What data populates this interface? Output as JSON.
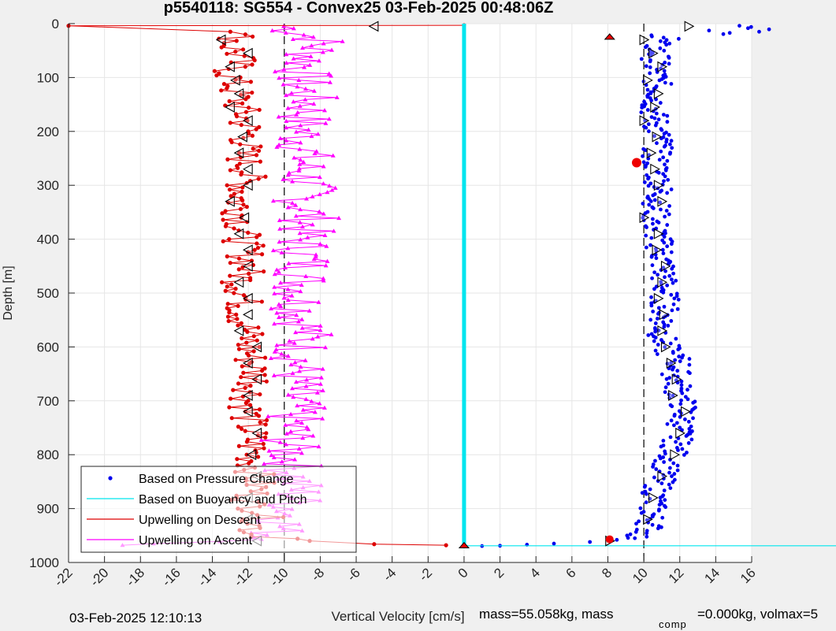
{
  "chart_data": {
    "type": "scatter",
    "title": "p5540118: SG554 - Convex25 03-Feb-2025 00:48:06Z",
    "xlabel": "Vertical Velocity [cm/s]",
    "ylabel": "Depth [m]",
    "xlim": [
      -22,
      16
    ],
    "ylim": [
      0,
      1000
    ],
    "y_reversed": true,
    "grid": true,
    "x_ticks": [
      -22,
      -20,
      -18,
      -16,
      -14,
      -12,
      -10,
      -8,
      -6,
      -4,
      -2,
      0,
      2,
      4,
      6,
      8,
      10,
      12,
      14,
      16
    ],
    "y_ticks": [
      0,
      100,
      200,
      300,
      400,
      500,
      600,
      700,
      800,
      900,
      1000
    ],
    "ref_lines_x": [
      -10,
      10
    ],
    "legend_position": "bottom-left",
    "series": [
      {
        "name": "Based on Pressure Change",
        "color": "#0000ee",
        "marker": "dot",
        "depth": [
          5,
          15,
          25,
          40,
          60,
          80,
          100,
          130,
          160,
          190,
          220,
          250,
          280,
          310,
          340,
          370,
          400,
          430,
          460,
          490,
          520,
          550,
          580,
          610,
          625,
          650,
          680,
          710,
          740,
          770,
          800,
          830,
          860,
          890,
          920,
          940,
          955,
          962,
          966,
          969
        ],
        "velocity": [
          14,
          13.5,
          11,
          10.6,
          10.7,
          10.6,
          10.7,
          10.8,
          10.5,
          10.7,
          10.9,
          10.6,
          10.8,
          10.9,
          10.7,
          10.6,
          10.8,
          11,
          11.1,
          11.1,
          11.2,
          11.1,
          11,
          11.3,
          12,
          11.8,
          11.9,
          12.2,
          12.1,
          11.9,
          11.6,
          11.1,
          10.8,
          10.5,
          10.4,
          10.3,
          9.5,
          8,
          6,
          2
        ]
      },
      {
        "name": "Based on Buoyancy and Pitch",
        "color": "#00e5ee",
        "marker": "line",
        "depth": [
          0,
          969
        ],
        "velocity": [
          0,
          0
        ]
      },
      {
        "name": "Upwelling on Descent",
        "color": "#dd0000",
        "marker": "dot",
        "depth": [
          3,
          5,
          10,
          25,
          40,
          60,
          90,
          120,
          150,
          180,
          210,
          240,
          270,
          300,
          330,
          360,
          390,
          420,
          450,
          480,
          510,
          540,
          570,
          600,
          630,
          660,
          700,
          740,
          780,
          820,
          860,
          890,
          910,
          930,
          950,
          966,
          968
        ],
        "velocity": [
          0,
          -20,
          -13,
          -12.5,
          -13,
          -12.5,
          -13,
          -12.8,
          -12.5,
          -12.2,
          -12,
          -12.4,
          -12,
          -12.2,
          -12.5,
          -12.3,
          -12.4,
          -12.2,
          -12,
          -12.4,
          -12.2,
          -12.3,
          -12.1,
          -12,
          -11.8,
          -11.5,
          -12,
          -12,
          -11.8,
          -11.7,
          -11.5,
          -12,
          -11,
          -11.5,
          -11.8,
          -5,
          -1
        ]
      },
      {
        "name": "Upwelling on Ascent",
        "color": "#ff00ff",
        "marker": "triangle",
        "depth": [
          5,
          30,
          60,
          90,
          120,
          150,
          180,
          210,
          240,
          270,
          300,
          330,
          360,
          390,
          420,
          450,
          480,
          510,
          540,
          570,
          600,
          630,
          660,
          690,
          720,
          750,
          780,
          810,
          840,
          870,
          900,
          930,
          960,
          968
        ],
        "velocity": [
          -10,
          -8,
          -8.5,
          -9,
          -9,
          -8.5,
          -9,
          -9,
          -8.8,
          -9,
          -8.7,
          -9,
          -8.5,
          -9,
          -9,
          -8.8,
          -9,
          -9.1,
          -9,
          -8.8,
          -9,
          -9.2,
          -9.3,
          -9.5,
          -9.4,
          -9.6,
          -9.8,
          -9.5,
          -9.5,
          -9.2,
          -9.5,
          -10,
          -11,
          -19
        ]
      }
    ],
    "markers": {
      "depth": [
        5,
        30,
        55,
        80,
        105,
        130,
        155,
        180,
        210,
        240,
        270,
        300,
        330,
        360,
        390,
        420,
        450,
        480,
        510,
        540,
        570,
        600,
        630,
        660,
        690,
        720,
        760,
        800,
        840,
        880,
        920,
        960
      ],
      "descent_velocity": [
        -5,
        -13.5,
        -12,
        -13,
        -12.7,
        -12.5,
        -13,
        -12,
        -12.3,
        -12.5,
        -12,
        -12,
        -13,
        -12.2,
        -12.5,
        -12,
        -12,
        -12.5,
        -12,
        -12,
        -12.5,
        -11.5,
        -12,
        -11.5,
        -12,
        -12,
        -11.5,
        -11.8,
        -11.5,
        -12,
        -12,
        -11.5
      ],
      "ascent_velocity": [
        12.5,
        10,
        10.5,
        11,
        10.2,
        10.8,
        10.6,
        10,
        10.7,
        10.4,
        10.6,
        10.8,
        11,
        10,
        10.8,
        10.7,
        11.2,
        11,
        10.8,
        11.1,
        11,
        11.2,
        11.5,
        11.8,
        11.6,
        12.3,
        12,
        11.7,
        11,
        10.5,
        10.2,
        8.1
      ]
    },
    "legend": [
      {
        "label": "Based on Pressure Change",
        "color": "#0000ee",
        "style": "dot"
      },
      {
        "label": "Based on Buoyancy and Pitch",
        "color": "#00e5ee",
        "style": "line"
      },
      {
        "label": "Upwelling on Descent",
        "color": "#dd0000",
        "style": "line"
      },
      {
        "label": "Upwelling on Ascent",
        "color": "#ff00ff",
        "style": "line"
      }
    ]
  },
  "footer": {
    "timestamp": "03-Feb-2025 12:10:13",
    "info": "mass=55.058kg, mass",
    "comp_subscript": "comp",
    "info2": "=0.000kg, volmax=5"
  },
  "colors": {
    "background": "#f0f0f0",
    "plot_bg": "#ffffff",
    "grid": "#e6e6e6",
    "axis": "#262626"
  }
}
